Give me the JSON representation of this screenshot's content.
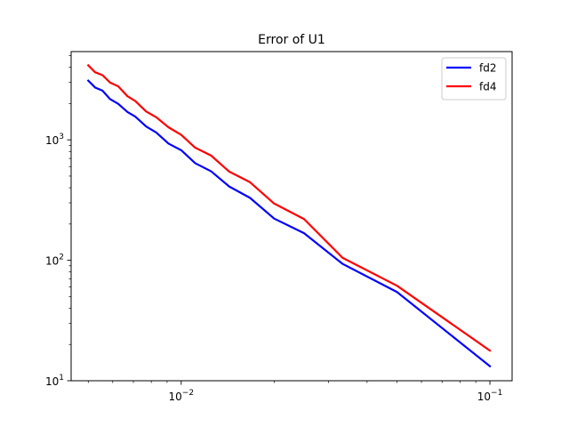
{
  "chart_data": {
    "type": "line",
    "title": "Error of U1",
    "xscale": "log",
    "yscale": "log",
    "xlim": [
      0.0044,
      0.118
    ],
    "ylim": [
      10,
      5400
    ],
    "xticks": [
      {
        "value": 0.01,
        "base": "10",
        "exp": "−2"
      },
      {
        "value": 0.1,
        "base": "10",
        "exp": "−1"
      }
    ],
    "yticks": [
      {
        "value": 10,
        "base": "10",
        "exp": "1"
      },
      {
        "value": 100,
        "base": "10",
        "exp": "2"
      },
      {
        "value": 1000,
        "base": "10",
        "exp": "3"
      }
    ],
    "legend_position": "top-right",
    "grid": false,
    "series": [
      {
        "name": "fd2",
        "color": "#0000ff",
        "x": [
          0.1,
          0.05,
          0.0333,
          0.025,
          0.02,
          0.0167,
          0.0143,
          0.0125,
          0.0111,
          0.01,
          0.0091,
          0.0083,
          0.0077,
          0.0071,
          0.0067,
          0.00625,
          0.00588,
          0.00556,
          0.00526,
          0.005
        ],
        "y": [
          13.2,
          54.5,
          93.5,
          168,
          222,
          330,
          410,
          548,
          640,
          820,
          930,
          1150,
          1290,
          1560,
          1700,
          1990,
          2180,
          2560,
          2720,
          3100
        ]
      },
      {
        "name": "fd4",
        "color": "#ff0000",
        "x": [
          0.1,
          0.05,
          0.0333,
          0.025,
          0.02,
          0.0167,
          0.0143,
          0.0125,
          0.0111,
          0.01,
          0.0091,
          0.0083,
          0.0077,
          0.0071,
          0.0067,
          0.00625,
          0.00588,
          0.00556,
          0.00526,
          0.005
        ],
        "y": [
          17.8,
          61.5,
          105,
          220,
          296,
          445,
          545,
          740,
          860,
          1100,
          1270,
          1540,
          1720,
          2100,
          2300,
          2780,
          2990,
          3440,
          3640,
          4150
        ]
      }
    ]
  }
}
